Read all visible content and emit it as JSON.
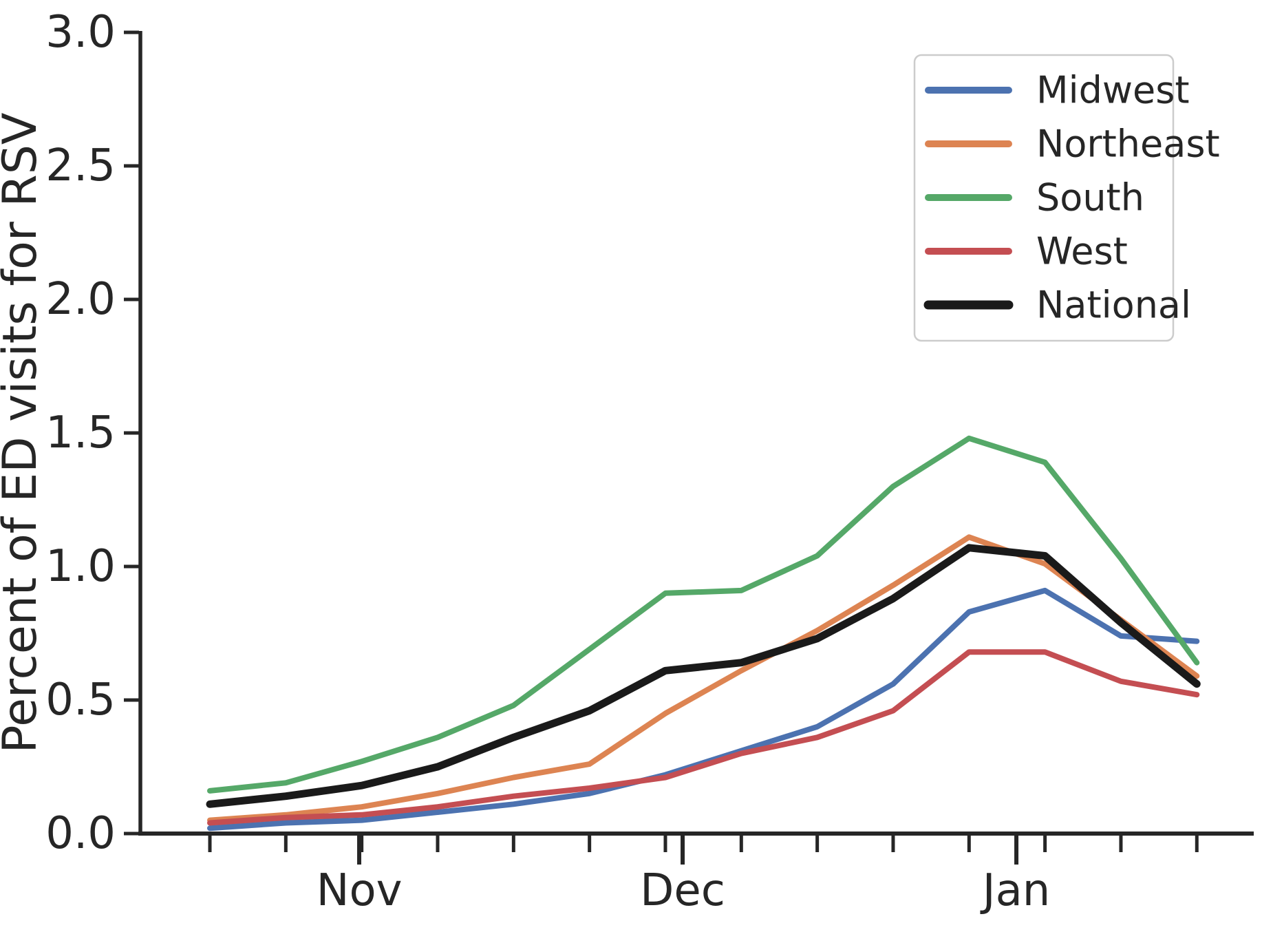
{
  "figure": {
    "background": "#ffffff",
    "text_color": "#262626",
    "axis_color": "#262626",
    "legend_border_color": "#cccccc"
  },
  "chart_data": {
    "type": "line",
    "title": "",
    "xlabel": "",
    "ylabel": "Percent of ED visits for RSV",
    "ylim": [
      0.0,
      3.0
    ],
    "grid": false,
    "legend_position": "upper right",
    "x_weeks": [
      0,
      1,
      2,
      3,
      4,
      5,
      6,
      7,
      8,
      9,
      10,
      11,
      12,
      13
    ],
    "x_axis": {
      "minor_tick_weeks": [
        0,
        1,
        2,
        3,
        4,
        5,
        6,
        7,
        8,
        9,
        10,
        11,
        12,
        13
      ],
      "month_ticks": [
        {
          "label": "Nov",
          "week_pos": 1.967
        },
        {
          "label": "Dec",
          "week_pos": 6.227
        },
        {
          "label": "Jan",
          "week_pos": 10.623
        }
      ]
    },
    "y_axis": {
      "ticks": [
        {
          "value": 0.0,
          "label": "0.0"
        },
        {
          "value": 0.5,
          "label": "0.5"
        },
        {
          "value": 1.0,
          "label": "1.0"
        },
        {
          "value": 1.5,
          "label": "1.5"
        },
        {
          "value": 2.0,
          "label": "2.0"
        },
        {
          "value": 2.5,
          "label": "2.5"
        },
        {
          "value": 3.0,
          "label": "3.0"
        }
      ]
    },
    "series": [
      {
        "name": "Midwest",
        "color": "#4C72B0",
        "line_width": 8,
        "legend_swatch_width": 10,
        "values": [
          0.02,
          0.04,
          0.05,
          0.08,
          0.11,
          0.15,
          0.22,
          0.31,
          0.4,
          0.56,
          0.83,
          0.91,
          0.74,
          0.72
        ]
      },
      {
        "name": "Northeast",
        "color": "#DD8452",
        "line_width": 8,
        "legend_swatch_width": 10,
        "values": [
          0.05,
          0.07,
          0.1,
          0.15,
          0.21,
          0.26,
          0.45,
          0.61,
          0.76,
          0.93,
          1.11,
          1.01,
          0.8,
          0.59
        ]
      },
      {
        "name": "South",
        "color": "#55A868",
        "line_width": 8,
        "legend_swatch_width": 10,
        "values": [
          0.16,
          0.19,
          0.27,
          0.36,
          0.48,
          0.69,
          0.9,
          0.91,
          1.04,
          1.3,
          1.48,
          1.39,
          1.03,
          0.64
        ]
      },
      {
        "name": "West",
        "color": "#C44E52",
        "line_width": 8,
        "legend_swatch_width": 10,
        "values": [
          0.04,
          0.06,
          0.07,
          0.1,
          0.14,
          0.17,
          0.21,
          0.3,
          0.36,
          0.46,
          0.68,
          0.68,
          0.57,
          0.52
        ]
      },
      {
        "name": "National",
        "color": "#1a1a1a",
        "line_width": 11,
        "legend_swatch_width": 13,
        "values": [
          0.11,
          0.14,
          0.18,
          0.25,
          0.36,
          0.46,
          0.61,
          0.64,
          0.73,
          0.88,
          1.07,
          1.04,
          0.79,
          0.56
        ]
      }
    ]
  }
}
